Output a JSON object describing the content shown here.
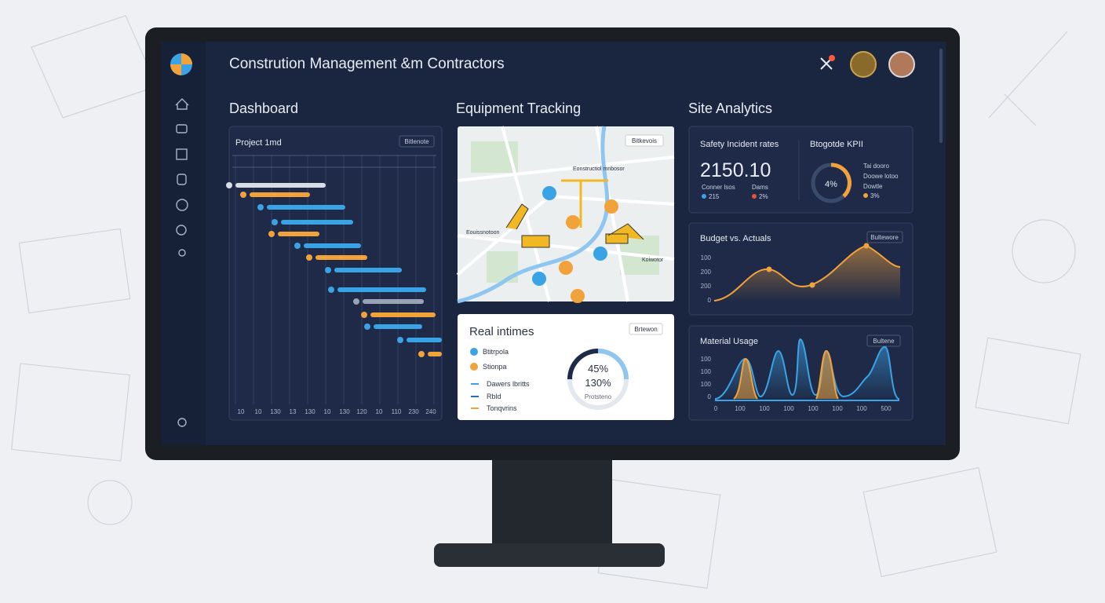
{
  "header": {
    "title": "Constrution Management &m Contractors"
  },
  "sections": [
    "Dashboard",
    "Equipment Tracking",
    "Site Analytics"
  ],
  "timeline": {
    "title": "Project 1md",
    "button": "Bitlenote",
    "axis_labels": [
      "10",
      "10",
      "130",
      "13",
      "130",
      "10",
      "130",
      "120",
      "10",
      "110",
      "230",
      "240"
    ]
  },
  "map": {
    "button": "Bitkevois",
    "labels": [
      "Eonstructiol mnbosor",
      "Eouissnotoon",
      "Koiwotor"
    ]
  },
  "realtime": {
    "title": "Real intimes",
    "button": "Brtewon",
    "legend": [
      "Btitrpola",
      "Stionpa",
      "Dawers lbritts",
      "Rbld",
      "Tonqvrins"
    ],
    "gauge": {
      "value": "45%",
      "secondary": "130%",
      "caption": "Protsteno"
    }
  },
  "kpi": {
    "title": "Safety Incident rates",
    "value": "2150.10",
    "stats": [
      {
        "label": "Conner lsos",
        "value": "215"
      },
      {
        "label": "Dams",
        "value": "2%"
      }
    ],
    "gauge_title": "Btogotde KPII",
    "gauge_value": "4%",
    "legend": [
      "Tai dooro",
      "Doowe lotoo",
      "Dowtle",
      "3%"
    ]
  },
  "budget": {
    "title": "Budget vs. Actuals",
    "button": "Bultewore",
    "y_labels": [
      "100",
      "200",
      "200",
      "0"
    ]
  },
  "material": {
    "title": "Material Usage",
    "button": "Bultene",
    "y_labels": [
      "100",
      "100",
      "100",
      "0"
    ],
    "x_labels": [
      "0",
      "100",
      "100",
      "100",
      "100",
      "100",
      "100",
      "500"
    ]
  }
}
